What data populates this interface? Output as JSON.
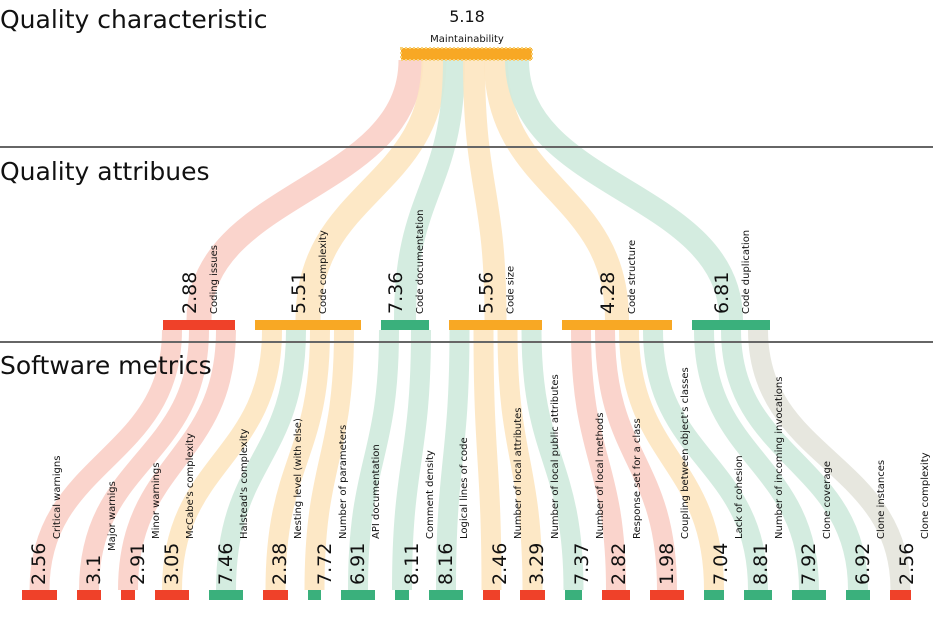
{
  "bands": {
    "characteristic": "Quality characteristic",
    "attributes": "Quality attribues",
    "metrics": "Software metrics"
  },
  "colors": {
    "good": "#3ab07c",
    "medium": "#f8a824",
    "bad": "#ef4129",
    "flow_good": "#cfeadd",
    "flow_medium": "#fde5c0",
    "flow_bad": "#f9cfc6",
    "flow_gray": "#e4e4dc",
    "divider": "#666666"
  },
  "root": {
    "name": "Maintainability",
    "score": "5.18",
    "status": "medium"
  },
  "attributes": [
    {
      "name": "Coding issues",
      "score": "2.88",
      "status": "bad",
      "flow": "bad"
    },
    {
      "name": "Code complexity",
      "score": "5.51",
      "status": "medium",
      "flow": "medium"
    },
    {
      "name": "Code documentation",
      "score": "7.36",
      "status": "good",
      "flow": "good"
    },
    {
      "name": "Code size",
      "score": "5.56",
      "status": "medium",
      "flow": "medium"
    },
    {
      "name": "Code structure",
      "score": "4.28",
      "status": "medium",
      "flow": "medium"
    },
    {
      "name": "Code duplication",
      "score": "6.81",
      "status": "good",
      "flow": "good"
    }
  ],
  "metrics": [
    {
      "name": "Critical warnigns",
      "score": "2.56",
      "status": "bad",
      "parent": 0,
      "flow": "bad"
    },
    {
      "name": "Major warnigs",
      "score": "3.1",
      "status": "bad",
      "parent": 0,
      "flow": "bad"
    },
    {
      "name": "Minor warnings",
      "score": "2.91",
      "status": "bad",
      "parent": 0,
      "flow": "bad"
    },
    {
      "name": "McCabe's complexity",
      "score": "3.05",
      "status": "bad",
      "parent": 1,
      "flow": "medium"
    },
    {
      "name": "Halstead's complexity",
      "score": "7.46",
      "status": "good",
      "parent": 1,
      "flow": "good"
    },
    {
      "name": "Nesting level (with else)",
      "score": "2.38",
      "status": "bad",
      "parent": 1,
      "flow": "medium"
    },
    {
      "name": "Number of parameters",
      "score": "7.72",
      "status": "good",
      "parent": 1,
      "flow": "medium"
    },
    {
      "name": "API documentation",
      "score": "6.91",
      "status": "good",
      "parent": 2,
      "flow": "good"
    },
    {
      "name": "Comment density",
      "score": "8.11",
      "status": "good",
      "parent": 2,
      "flow": "good"
    },
    {
      "name": "Logical lines of code",
      "score": "8.16",
      "status": "good",
      "parent": 3,
      "flow": "good"
    },
    {
      "name": "Number of local attributes",
      "score": "2.46",
      "status": "bad",
      "parent": 3,
      "flow": "medium"
    },
    {
      "name": "Number of local public attributes",
      "score": "3.29",
      "status": "bad",
      "parent": 3,
      "flow": "medium"
    },
    {
      "name": "Number of local methods",
      "score": "7.37",
      "status": "good",
      "parent": 3,
      "flow": "good"
    },
    {
      "name": "Response set for a class",
      "score": "2.82",
      "status": "bad",
      "parent": 4,
      "flow": "bad"
    },
    {
      "name": "Coupling between object's classes",
      "score": "1.98",
      "status": "bad",
      "parent": 4,
      "flow": "bad"
    },
    {
      "name": "Lack of cohesion",
      "score": "7.04",
      "status": "good",
      "parent": 4,
      "flow": "medium"
    },
    {
      "name": "Number of incoming invocations",
      "score": "8.81",
      "status": "good",
      "parent": 4,
      "flow": "good"
    },
    {
      "name": "Clone coverage",
      "score": "7.92",
      "status": "good",
      "parent": 5,
      "flow": "good"
    },
    {
      "name": "Clone instances",
      "score": "6.92",
      "status": "good",
      "parent": 5,
      "flow": "good"
    },
    {
      "name": "Clone complexity",
      "score": "2.56",
      "status": "bad",
      "parent": 5,
      "flow": "gray"
    }
  ]
}
